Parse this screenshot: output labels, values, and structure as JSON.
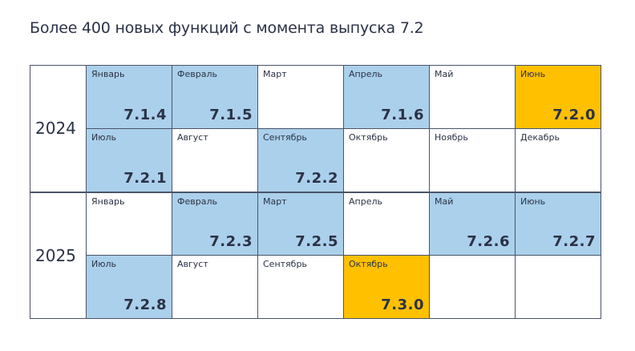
{
  "title": "Более 400 новых функций с момента выпуска 7.2",
  "colors": {
    "release": "#abd0eb",
    "major_release": "#ffc000",
    "empty": "#ffffff",
    "border": "#4a5468",
    "text": "#2b3245"
  },
  "years": [
    {
      "label": "2024",
      "rows": [
        [
          {
            "month": "Январь",
            "version": "7.1.4",
            "type": "release"
          },
          {
            "month": "Февраль",
            "version": "7.1.5",
            "type": "release"
          },
          {
            "month": "Март",
            "version": "",
            "type": "empty"
          },
          {
            "month": "Апрель",
            "version": "7.1.6",
            "type": "release"
          },
          {
            "month": "Май",
            "version": "",
            "type": "empty"
          },
          {
            "month": "Июнь",
            "version": "7.2.0",
            "type": "major"
          }
        ],
        [
          {
            "month": "Июль",
            "version": "7.2.1",
            "type": "release"
          },
          {
            "month": "Август",
            "version": "",
            "type": "empty"
          },
          {
            "month": "Сентябрь",
            "version": "7.2.2",
            "type": "release"
          },
          {
            "month": "Октябрь",
            "version": "",
            "type": "empty"
          },
          {
            "month": "Ноябрь",
            "version": "",
            "type": "empty"
          },
          {
            "month": "Декабрь",
            "version": "",
            "type": "empty"
          }
        ]
      ]
    },
    {
      "label": "2025",
      "rows": [
        [
          {
            "month": "Январь",
            "version": "",
            "type": "empty"
          },
          {
            "month": "Февраль",
            "version": "7.2.3",
            "type": "release"
          },
          {
            "month": "Март",
            "version": "7.2.5",
            "type": "release"
          },
          {
            "month": "Апрель",
            "version": "",
            "type": "empty"
          },
          {
            "month": "Май",
            "version": "7.2.6",
            "type": "release"
          },
          {
            "month": "Июнь",
            "version": "7.2.7",
            "type": "release"
          }
        ],
        [
          {
            "month": "Июль",
            "version": "7.2.8",
            "type": "release"
          },
          {
            "month": "Август",
            "version": "",
            "type": "empty"
          },
          {
            "month": "Сентябрь",
            "version": "",
            "type": "empty"
          },
          {
            "month": "Октябрь",
            "version": "7.3.0",
            "type": "major"
          },
          {
            "month": "",
            "version": "",
            "type": "empty"
          },
          {
            "month": "",
            "version": "",
            "type": "empty"
          }
        ]
      ]
    }
  ]
}
